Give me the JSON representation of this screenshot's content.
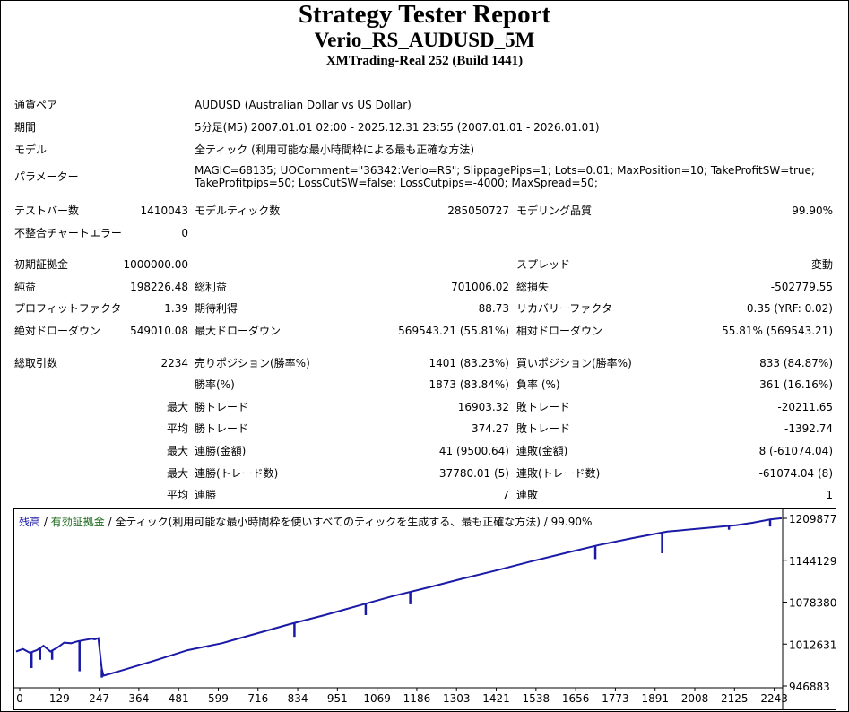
{
  "report": {
    "title": "Strategy Tester Report",
    "ea_name": "Verio_RS_AUDUSD_5M",
    "server": "XMTrading-Real 252 (Build 1441)"
  },
  "settings": {
    "symbol": {
      "label": "通貨ペア",
      "value": "AUDUSD (Australian Dollar vs US Dollar)"
    },
    "period": {
      "label": "期間",
      "value": "5分足(M5) 2007.01.01 02:00 - 2025.12.31 23:55 (2007.01.01 - 2026.01.01)"
    },
    "model": {
      "label": "モデル",
      "value": "全ティック (利用可能な最小時間枠による最も正確な方法)"
    },
    "parameters": {
      "label": "パラメーター",
      "line1": "MAGIC=68135; UOComment=\"36342:Verio=RS\"; SlippagePips=1; Lots=0.01; MaxPosition=10; TakeProfitSW=true;",
      "line2": "TakeProfitpips=50; LossCutSW=false; LossCutpips=-4000; MaxSpread=50;"
    }
  },
  "stats": {
    "bars": {
      "label": "テストバー数",
      "value": "1410043"
    },
    "ticks": {
      "label": "モデルティック数",
      "value": "285050727"
    },
    "quality": {
      "label": "モデリング品質",
      "value": "99.90%"
    },
    "mismatch": {
      "label": "不整合チャートエラー",
      "value": "0"
    },
    "initial_deposit": {
      "label": "初期証拠金",
      "value": "1000000.00"
    },
    "spread": {
      "label": "スプレッド",
      "value": "変動"
    },
    "net_profit": {
      "label": "純益",
      "value": "198226.48"
    },
    "gross_profit": {
      "label": "総利益",
      "value": "701006.02"
    },
    "gross_loss": {
      "label": "総損失",
      "value": "-502779.55"
    },
    "profit_factor": {
      "label": "プロフィットファクタ",
      "value": "1.39"
    },
    "expected_payoff": {
      "label": "期待利得",
      "value": "88.73"
    },
    "recovery_factor": {
      "label": "リカバリーファクタ",
      "value": "0.35 (YRF: 0.02)"
    },
    "abs_drawdown": {
      "label": "絶対ドローダウン",
      "value": "549010.08"
    },
    "max_drawdown": {
      "label": "最大ドローダウン",
      "value": "569543.21 (55.81%)"
    },
    "rel_drawdown": {
      "label": "相対ドローダウン",
      "value": "55.81% (569543.21)"
    },
    "total_trades": {
      "label": "総取引数",
      "value": "2234"
    },
    "short_positions": {
      "label": "売りポジション(勝率%)",
      "value": "1401 (83.23%)"
    },
    "long_positions": {
      "label": "買いポジション(勝率%)",
      "value": "833 (84.87%)"
    },
    "win_rate": {
      "label": "勝率(%)",
      "value": "1873 (83.84%)"
    },
    "loss_rate": {
      "label": "負率 (%)",
      "value": "361 (16.16%)"
    },
    "largest_win": {
      "prefix": "最大",
      "label": "勝トレード",
      "value": "16903.32"
    },
    "largest_loss": {
      "label": "敗トレード",
      "value": "-20211.65"
    },
    "average_win": {
      "prefix": "平均",
      "label": "勝トレード",
      "value": "374.27"
    },
    "average_loss": {
      "label": "敗トレード",
      "value": "-1392.74"
    },
    "max_consec_wins_money": {
      "prefix": "最大",
      "label": "連勝(金額)",
      "value": "41 (9500.64)"
    },
    "max_consec_losses_money": {
      "label": "連敗(金額)",
      "value": "8 (-61074.04)"
    },
    "max_consec_wins_trades": {
      "prefix": "最大",
      "label": "連勝(トレード数)",
      "value": "37780.01 (5)"
    },
    "max_consec_losses_trades": {
      "label": "連敗(トレード数)",
      "value": "-61074.04 (8)"
    },
    "avg_consec_wins": {
      "prefix": "平均",
      "label": "連勝",
      "value": "7"
    },
    "avg_consec_losses": {
      "label": "連敗",
      "value": "1"
    }
  },
  "chart_legend": {
    "balance": "残高",
    "sep1": " / ",
    "equity": "有効証拠金",
    "sep2": " / ",
    "desc": "全ティック(利用可能な最小時間枠を使いすべてのティックを生成する、最も正確な方法) / 99.90%"
  },
  "colors": {
    "balance_line": "#1a1aa6",
    "equity_line": "#2b8a2b",
    "border": "#000000"
  },
  "chart_data": {
    "type": "line",
    "title": "",
    "xlabel": "",
    "ylabel": "",
    "x_ticks": [
      "0",
      "129",
      "247",
      "364",
      "481",
      "599",
      "716",
      "834",
      "951",
      "1069",
      "1186",
      "1303",
      "1421",
      "1538",
      "1656",
      "1773",
      "1891",
      "2008",
      "2125",
      "2243"
    ],
    "y_ticks": [
      "1209877",
      "1144129",
      "1078380",
      "1012631",
      "946883"
    ],
    "xlim": [
      0,
      2234
    ],
    "ylim": [
      946883,
      1209877
    ],
    "series": [
      {
        "name": "残高",
        "x": [
          0,
          20,
          40,
          60,
          80,
          100,
          120,
          140,
          160,
          180,
          200,
          220,
          230,
          240,
          250,
          255,
          300,
          400,
          500,
          600,
          700,
          800,
          900,
          1000,
          1100,
          1200,
          1300,
          1400,
          1500,
          1600,
          1700,
          1800,
          1900,
          2000,
          2100,
          2150,
          2200,
          2234
        ],
        "y": [
          1001000,
          1005000,
          999000,
          1003000,
          1010000,
          1001000,
          1007000,
          1015000,
          1014000,
          1017000,
          1019000,
          1021000,
          1020000,
          1022000,
          973000,
          963000,
          970000,
          986000,
          1003000,
          1014000,
          1029000,
          1044000,
          1058000,
          1073000,
          1088000,
          1101000,
          1115000,
          1128000,
          1142000,
          1155000,
          1168000,
          1179000,
          1189000,
          1194000,
          1199000,
          1203000,
          1208000,
          1210000
        ]
      }
    ],
    "dips": [
      {
        "x": 45,
        "y": 975000
      },
      {
        "x": 70,
        "y": 988000
      },
      {
        "x": 105,
        "y": 988000
      },
      {
        "x": 185,
        "y": 970000
      },
      {
        "x": 250,
        "y": 960000
      },
      {
        "x": 560,
        "y": 1007000
      },
      {
        "x": 812,
        "y": 1024000
      },
      {
        "x": 1020,
        "y": 1058000
      },
      {
        "x": 1150,
        "y": 1075000
      },
      {
        "x": 1690,
        "y": 1146000
      },
      {
        "x": 1885,
        "y": 1155000
      },
      {
        "x": 2080,
        "y": 1192000
      },
      {
        "x": 2200,
        "y": 1197000
      }
    ]
  }
}
